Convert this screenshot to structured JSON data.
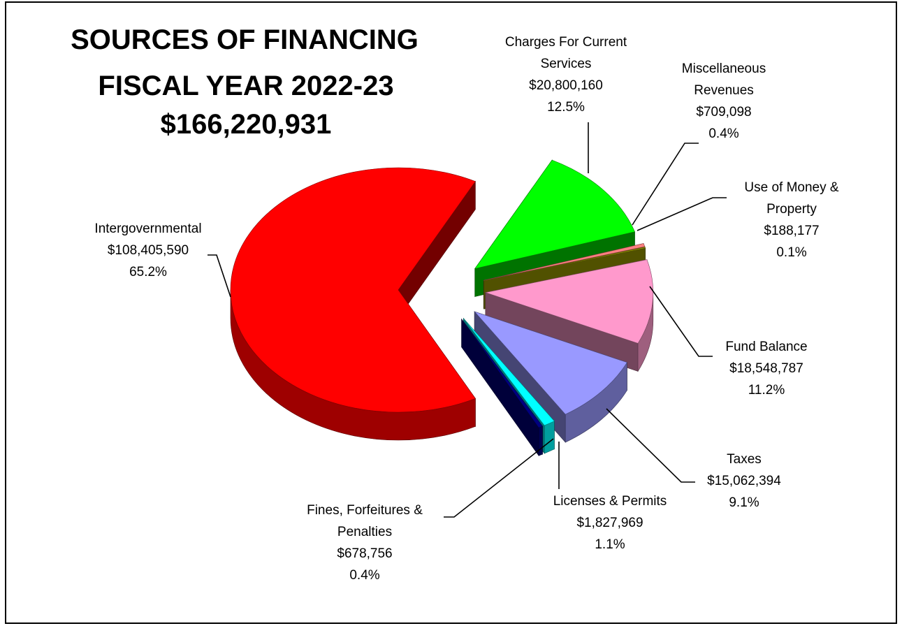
{
  "chart_data": {
    "type": "pie",
    "title": "SOURCES OF FINANCING",
    "subtitle": "FISCAL YEAR 2022-23",
    "total": {
      "value": 166220931,
      "label": "$166,220,931"
    },
    "categories": [
      "Intergovernmental",
      "Charges For Current Services",
      "Miscellaneous Revenues",
      "Use of Money & Property",
      "Fund Balance",
      "Taxes",
      "Licenses & Permits",
      "Fines, Forfeitures & Penalties"
    ],
    "values": [
      108405590,
      20800160,
      709098,
      188177,
      18548787,
      15062394,
      1827969,
      678756
    ],
    "value_labels": [
      "$108,405,590",
      "$20,800,160",
      "$709,098",
      "$188,177",
      "$18,548,787",
      "$15,062,394",
      "$1,827,969",
      "$678,756"
    ],
    "percents": [
      65.2,
      12.5,
      0.4,
      0.1,
      11.2,
      9.1,
      1.1,
      0.4
    ],
    "percent_labels": [
      "65.2%",
      "12.5%",
      "0.4%",
      "0.1%",
      "11.2%",
      "9.1%",
      "1.1%",
      "0.4%"
    ],
    "colors": [
      "#ff0000",
      "#00ff00",
      "#ff8080",
      "#b3b300",
      "#ff99cc",
      "#9999ff",
      "#00ffff",
      "#000080"
    ],
    "exploded": true,
    "three_d": true
  }
}
